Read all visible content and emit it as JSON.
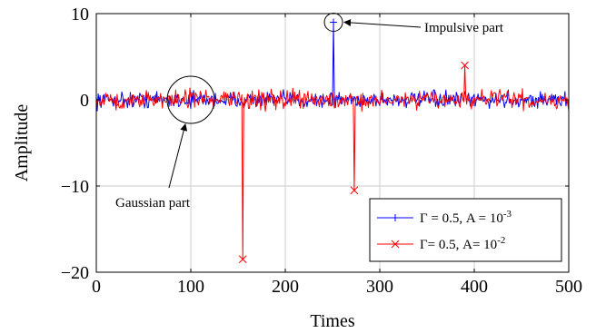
{
  "chart_data": {
    "type": "line",
    "xlabel": "Times",
    "ylabel": "Amplitude",
    "xlim": [
      0,
      500
    ],
    "ylim": [
      -20,
      10
    ],
    "xticks": [
      0,
      100,
      200,
      300,
      400,
      500
    ],
    "yticks": [
      -20,
      -10,
      0,
      10
    ],
    "xtick_labels": [
      "0",
      "100",
      "200",
      "300",
      "400",
      "500"
    ],
    "ytick_labels": [
      "−20",
      "−10",
      "0",
      "10"
    ],
    "grid": true,
    "legend_position": "bottom-right",
    "series": [
      {
        "name_text": "Γ = 0.5, A = 10",
        "name_exponent": "-3",
        "color": "#0000ff",
        "marker": "+",
        "noise_amplitude": 0.8,
        "impulses": [
          {
            "x": 251,
            "y": 9.0
          }
        ]
      },
      {
        "name_text": "Γ= 0.5, A= 10",
        "name_exponent": "-2",
        "color": "#ff0000",
        "marker": "x",
        "noise_amplitude": 0.9,
        "impulses": [
          {
            "x": 155,
            "y": -18.5
          },
          {
            "x": 273,
            "y": -10.5
          },
          {
            "x": 390,
            "y": 4.0
          }
        ]
      }
    ],
    "annotations": [
      {
        "text": "Impulsive part",
        "target_x": 251,
        "target_y": 9.0
      },
      {
        "text": "Gaussian part",
        "target_x": 100,
        "target_y": 0
      }
    ]
  }
}
